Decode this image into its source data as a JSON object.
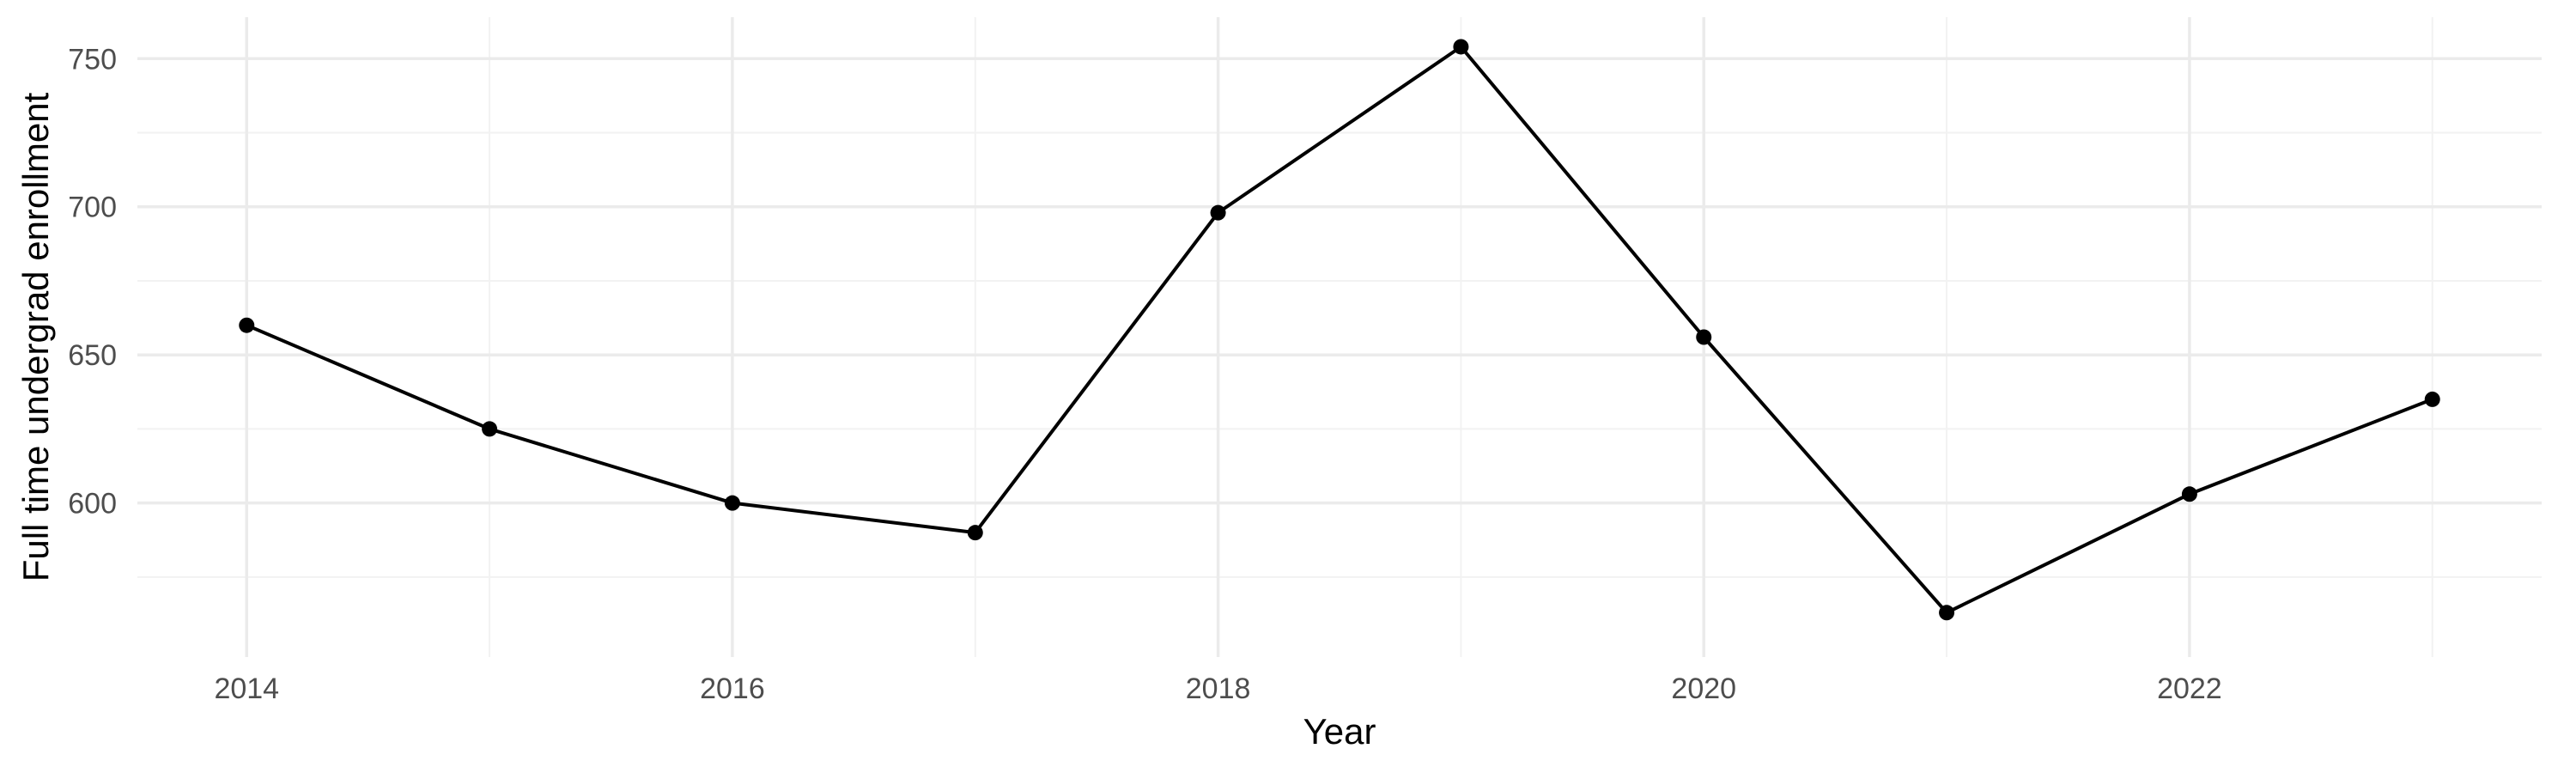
{
  "chart_data": {
    "type": "line",
    "title": "",
    "xlabel": "Year",
    "ylabel": "Full time undergrad enrollment",
    "x": [
      2014,
      2015,
      2016,
      2017,
      2018,
      2019,
      2020,
      2021,
      2022,
      2023
    ],
    "series": [
      {
        "values": [
          660,
          625,
          600,
          590,
          698,
          754,
          656,
          563,
          603,
          635
        ],
        "color": "#000000"
      }
    ],
    "xlim": [
      2013.55,
      2023.45
    ],
    "ylim": [
      548,
      764
    ],
    "x_ticks": [
      2014,
      2016,
      2018,
      2020,
      2022
    ],
    "x_tick_labels": [
      "2014",
      "2016",
      "2018",
      "2020",
      "2022"
    ],
    "x_minor_ticks": [
      2015,
      2017,
      2019,
      2021,
      2023
    ],
    "y_ticks": [
      600,
      650,
      700,
      750
    ],
    "y_tick_labels": [
      "600",
      "650",
      "700",
      "750"
    ],
    "y_minor_ticks": [
      575,
      625,
      675,
      725
    ],
    "grid": true,
    "legend": "none"
  }
}
